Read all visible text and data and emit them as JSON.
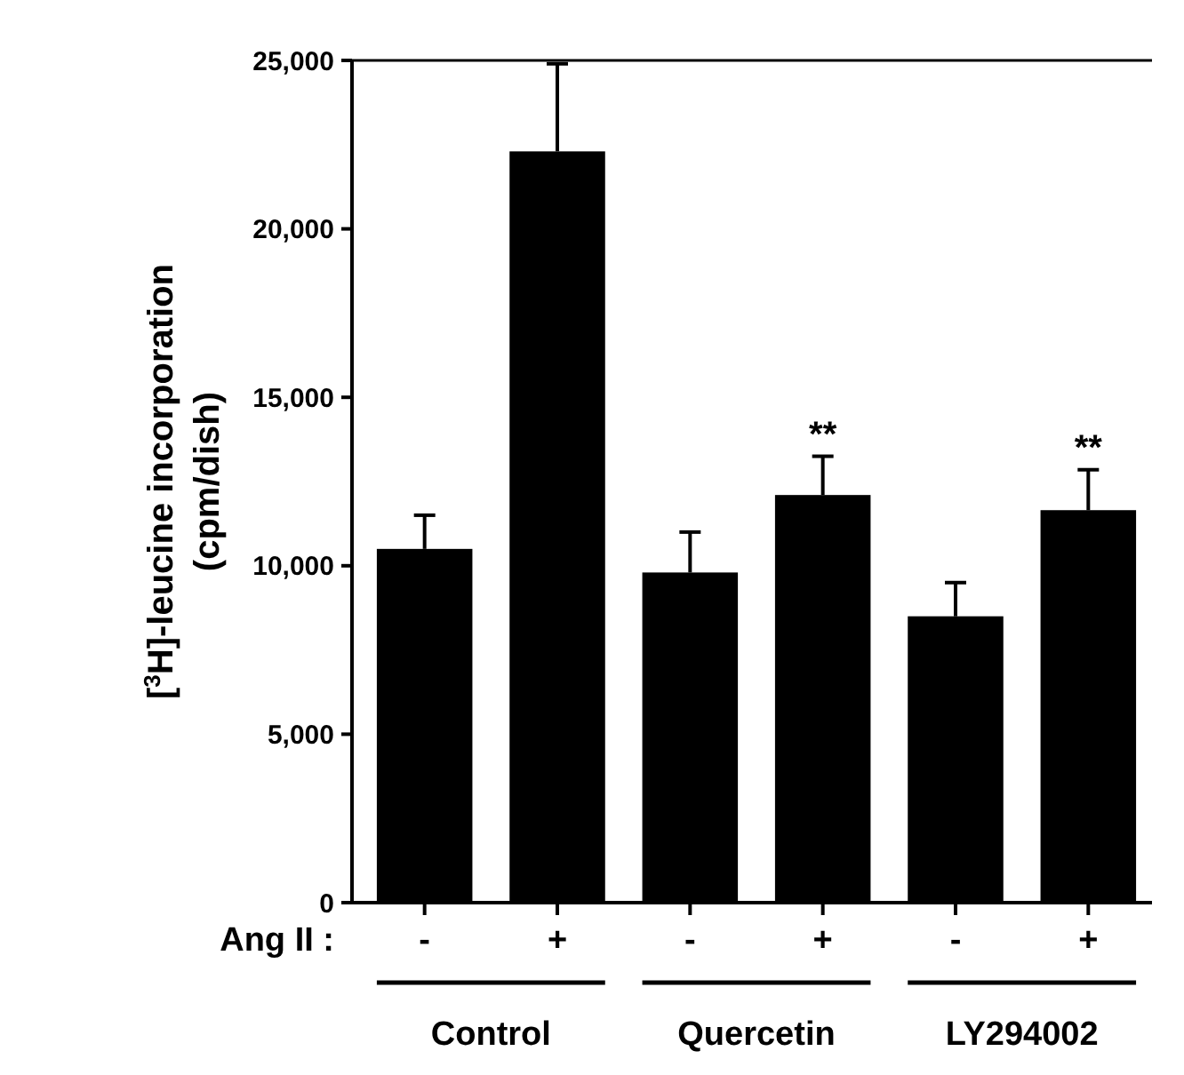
{
  "chart_data": {
    "type": "bar",
    "ylabel": "[$^{3}$H]-leucine incorporation\n(cpm/dish)",
    "categories": [
      "-",
      "+",
      "-",
      "+",
      "-",
      "+"
    ],
    "values": [
      10500,
      22300,
      9800,
      12100,
      8500,
      11650
    ],
    "errors": [
      1000,
      2600,
      1200,
      1150,
      1000,
      1200
    ],
    "color": "#000000",
    "ylim": [
      0,
      25000
    ],
    "yticks": [
      {
        "value": 0,
        "label": "0"
      },
      {
        "value": 5000,
        "label": "5,000"
      },
      {
        "value": 10000,
        "label": "10,000"
      },
      {
        "value": 15000,
        "label": "15,000"
      },
      {
        "value": 20000,
        "label": "20,000"
      },
      {
        "value": 25000,
        "label": "25,000"
      }
    ],
    "grid": false,
    "annotations": [
      "**",
      "**",
      "Ang II :",
      "Control",
      "Quercetin",
      "LY294002"
    ]
  }
}
